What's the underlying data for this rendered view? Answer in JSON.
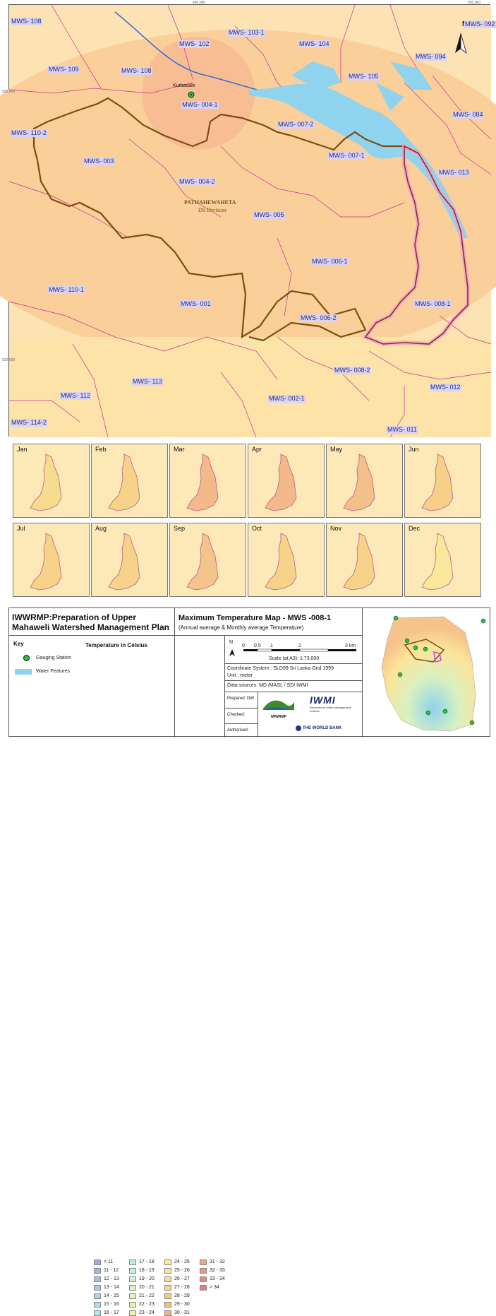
{
  "map": {
    "coords": {
      "top1": "490,000",
      "top2": "500,000",
      "left1": "500,000",
      "left2": "520,000"
    },
    "north_letter": "N",
    "division_name": "PATHAHEWAHETA",
    "division_sub": "DS Division",
    "gauging_name": "Kurbasale",
    "labels": [
      "MWS- 108",
      "MWS- 102",
      "MWS- 103-1",
      "MWS- 104",
      "MWS- 092",
      "MWS- 094",
      "MWS- 109",
      "MWS- 108",
      "MWS- 105",
      "MWS- 004-1",
      "MWS- 084",
      "MWS- 110-2",
      "MWS- 007-2",
      "MWS- 007-1",
      "MWS- 003",
      "MWS- 013",
      "MWS- 004-2",
      "MWS- 005",
      "MWS- 006-1",
      "MWS- 110-1",
      "MWS- 001",
      "MWS- 008-1",
      "MWS- 006-2",
      "MWS- 008-2",
      "MWS- 113",
      "MWS- 012",
      "MWS- 112",
      "MWS- 002-1",
      "MWS- 114-2",
      "MWS- 011"
    ]
  },
  "months": [
    {
      "name": "Jan",
      "fill": "#f7dc8e"
    },
    {
      "name": "Feb",
      "fill": "#f7d38a"
    },
    {
      "name": "Mar",
      "fill": "#f3b98a"
    },
    {
      "name": "Apr",
      "fill": "#f3b98a"
    },
    {
      "name": "May",
      "fill": "#f3c08a"
    },
    {
      "name": "Jun",
      "fill": "#f6cf88"
    },
    {
      "name": "Jul",
      "fill": "#f7d38a"
    },
    {
      "name": "Aug",
      "fill": "#f7d38a"
    },
    {
      "name": "Sep",
      "fill": "#f5c48a"
    },
    {
      "name": "Oct",
      "fill": "#f7d38a"
    },
    {
      "name": "Nov",
      "fill": "#f7d38a"
    },
    {
      "name": "Dec",
      "fill": "#fae99a"
    }
  ],
  "titleblock": {
    "project_line1": "IWWRMP:Preparation of Upper",
    "project_line2": "Mahaweli Watershed Management Plan",
    "map_title": "Maximum Temperature Map - MWS -008-1",
    "map_subtitle": "(Annual average & Monthly average Temperature)",
    "key_title": "Key",
    "key_gauging": "Gauging Station",
    "key_water": "Water Features",
    "legend_title": "Temperature in Celsius",
    "legend": [
      {
        "label": "< 11",
        "color": "#a9a3e6"
      },
      {
        "label": "11 - 12",
        "color": "#a7b0ea"
      },
      {
        "label": "12 - 13",
        "color": "#a6bdee"
      },
      {
        "label": "13 - 14",
        "color": "#a6c9f0"
      },
      {
        "label": "14 - 15",
        "color": "#a8d6f2"
      },
      {
        "label": "15 - 16",
        "color": "#a9e0f2"
      },
      {
        "label": "16 - 17",
        "color": "#aee8ef"
      },
      {
        "label": "17 - 18",
        "color": "#b6eee6"
      },
      {
        "label": "18 - 19",
        "color": "#c0f1dc"
      },
      {
        "label": "19 - 20",
        "color": "#cbf3d0"
      },
      {
        "label": "20 - 21",
        "color": "#d6f4c4"
      },
      {
        "label": "21 - 22",
        "color": "#e1f4b8"
      },
      {
        "label": "22 - 23",
        "color": "#eaf3ad"
      },
      {
        "label": "23 - 24",
        "color": "#f2f1a3"
      },
      {
        "label": "24 - 25",
        "color": "#f7ec9b"
      },
      {
        "label": "25 - 26",
        "color": "#fae596"
      },
      {
        "label": "26 - 27",
        "color": "#f9dc90"
      },
      {
        "label": "27 - 28",
        "color": "#f8d28b"
      },
      {
        "label": "28 - 29",
        "color": "#f7c888"
      },
      {
        "label": "29 - 30",
        "color": "#f5bd86"
      },
      {
        "label": "30 - 31",
        "color": "#f3b185"
      },
      {
        "label": "31 - 32",
        "color": "#f0a584"
      },
      {
        "label": "32 - 33",
        "color": "#ec9784"
      },
      {
        "label": "33 - 34",
        "color": "#e88885"
      },
      {
        "label": "> 34",
        "color": "#e47a86"
      }
    ],
    "scale_ticks": [
      "0",
      "0.5",
      "1",
      "2",
      "3 km"
    ],
    "scale_text": "Scale (at A3): 1:73,000",
    "coord_system": "Coordinate System : SLD99 Sri Lanka Grid 1999",
    "unit": "Unit : meter",
    "data_sources": "Data sources: MD /MASL / SD/ IWMI",
    "prepared": "Prepared: DW",
    "checked": "Checked:",
    "authorised": "Authorised:",
    "logo_iwwrmp": "IWWRMP",
    "logo_iwmi": "IWMI",
    "logo_iwmi_sub": "International Water Management Institute",
    "logo_worldbank": "THE WORLD BANK"
  }
}
